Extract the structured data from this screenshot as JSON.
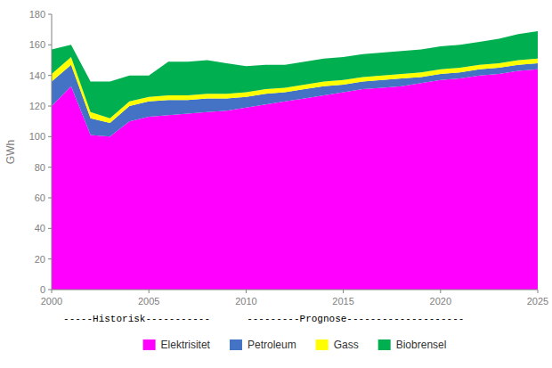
{
  "chart_data": {
    "type": "area",
    "stacked": true,
    "x": [
      2000,
      2001,
      2002,
      2003,
      2004,
      2005,
      2006,
      2007,
      2008,
      2009,
      2010,
      2011,
      2012,
      2013,
      2014,
      2015,
      2016,
      2017,
      2018,
      2019,
      2020,
      2021,
      2022,
      2023,
      2024,
      2025
    ],
    "series": [
      {
        "name": "Elektrisitet",
        "color": "#FF00FF",
        "values": [
          120,
          133,
          101,
          100,
          110,
          113,
          114,
          115,
          116,
          117,
          119,
          121,
          123,
          125,
          127,
          129,
          131,
          132,
          133,
          135,
          137,
          138,
          140,
          141,
          143,
          144
        ]
      },
      {
        "name": "Petroleum",
        "color": "#4472C4",
        "values": [
          16,
          14,
          11,
          9,
          10,
          10,
          10,
          9,
          9,
          8,
          7,
          7,
          6,
          6,
          6,
          5,
          5,
          5,
          5,
          4,
          4,
          4,
          4,
          4,
          4,
          4
        ]
      },
      {
        "name": "Gass",
        "color": "#FFFF00",
        "values": [
          5,
          5,
          4,
          3,
          3,
          3,
          3,
          3,
          3,
          3,
          3,
          3,
          3,
          3,
          3,
          3,
          3,
          3,
          3,
          3,
          3,
          3,
          3,
          3,
          3,
          3
        ]
      },
      {
        "name": "Biobrensel",
        "color": "#00B050",
        "values": [
          16,
          8,
          20,
          24,
          17,
          14,
          22,
          22,
          22,
          20,
          17,
          16,
          15,
          15,
          15,
          15,
          15,
          15,
          15,
          15,
          15,
          15,
          15,
          16,
          17,
          18
        ]
      }
    ],
    "ylabel": "GWh",
    "xlim": [
      2000,
      2025
    ],
    "xticks": [
      2000,
      2005,
      2010,
      2015,
      2020,
      2025
    ],
    "ylim": [
      0,
      180
    ],
    "yticks": [
      0,
      20,
      40,
      60,
      80,
      100,
      120,
      140,
      160,
      180
    ],
    "annotations": [
      "-----Historisk-----------",
      "---------Prognose--------------------"
    ],
    "legend": "bottom",
    "grid": false
  }
}
